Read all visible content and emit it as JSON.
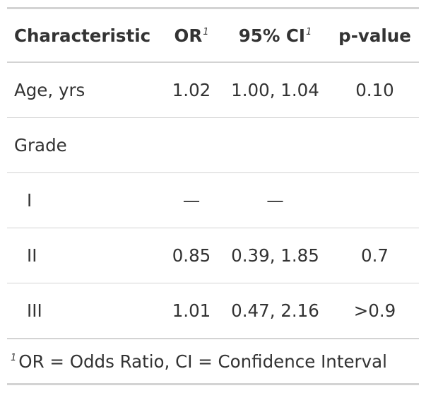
{
  "table": {
    "headers": {
      "characteristic": "Characteristic",
      "or": "OR",
      "or_footnote": "1",
      "ci": "95% CI",
      "ci_footnote": "1",
      "pvalue": "p-value"
    },
    "rows": [
      {
        "label": "Age, yrs",
        "or": "1.02",
        "ci": "1.00, 1.04",
        "p": "0.10"
      },
      {
        "label": "Grade",
        "or": "",
        "ci": "",
        "p": ""
      },
      {
        "label": "I",
        "or": "—",
        "ci": "—",
        "p": ""
      },
      {
        "label": "II",
        "or": "0.85",
        "ci": "0.39, 1.85",
        "p": "0.7"
      },
      {
        "label": "III",
        "or": "1.01",
        "ci": "0.47, 2.16",
        "p": ">0.9"
      }
    ],
    "footnote": {
      "marker": "1",
      "text": "OR = Odds Ratio, CI = Confidence Interval"
    }
  },
  "colors": {
    "text": "#333333",
    "rule": "#d3d3d3",
    "background": "#ffffff"
  }
}
